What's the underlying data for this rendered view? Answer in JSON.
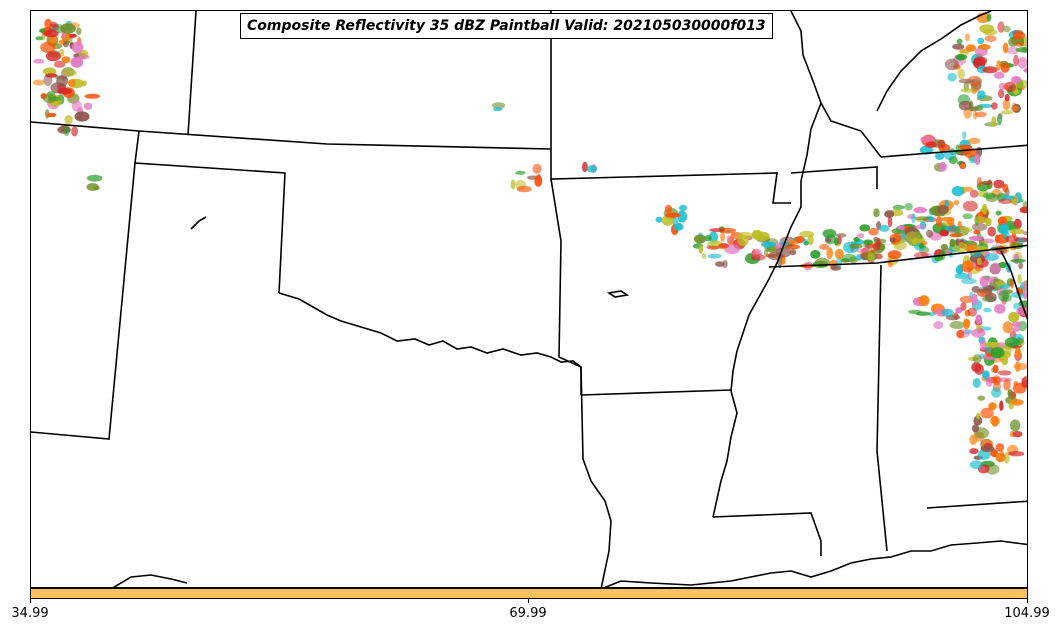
{
  "title": "Composite Reflectivity 35 dBZ Paintball Valid: 202105030000f013",
  "colorbar": {
    "color": "#fec15f",
    "ticks": [
      "34.99",
      "69.99",
      "104.99"
    ]
  },
  "map": {
    "region": "South-central United States",
    "state_borders": "black",
    "paintball_colors": [
      "#d62728",
      "#ff7f0e",
      "#2ca02c",
      "#8c564b",
      "#bcbd22",
      "#ff4d00",
      "#6b8e23",
      "#e377c2",
      "#17becf"
    ]
  }
}
